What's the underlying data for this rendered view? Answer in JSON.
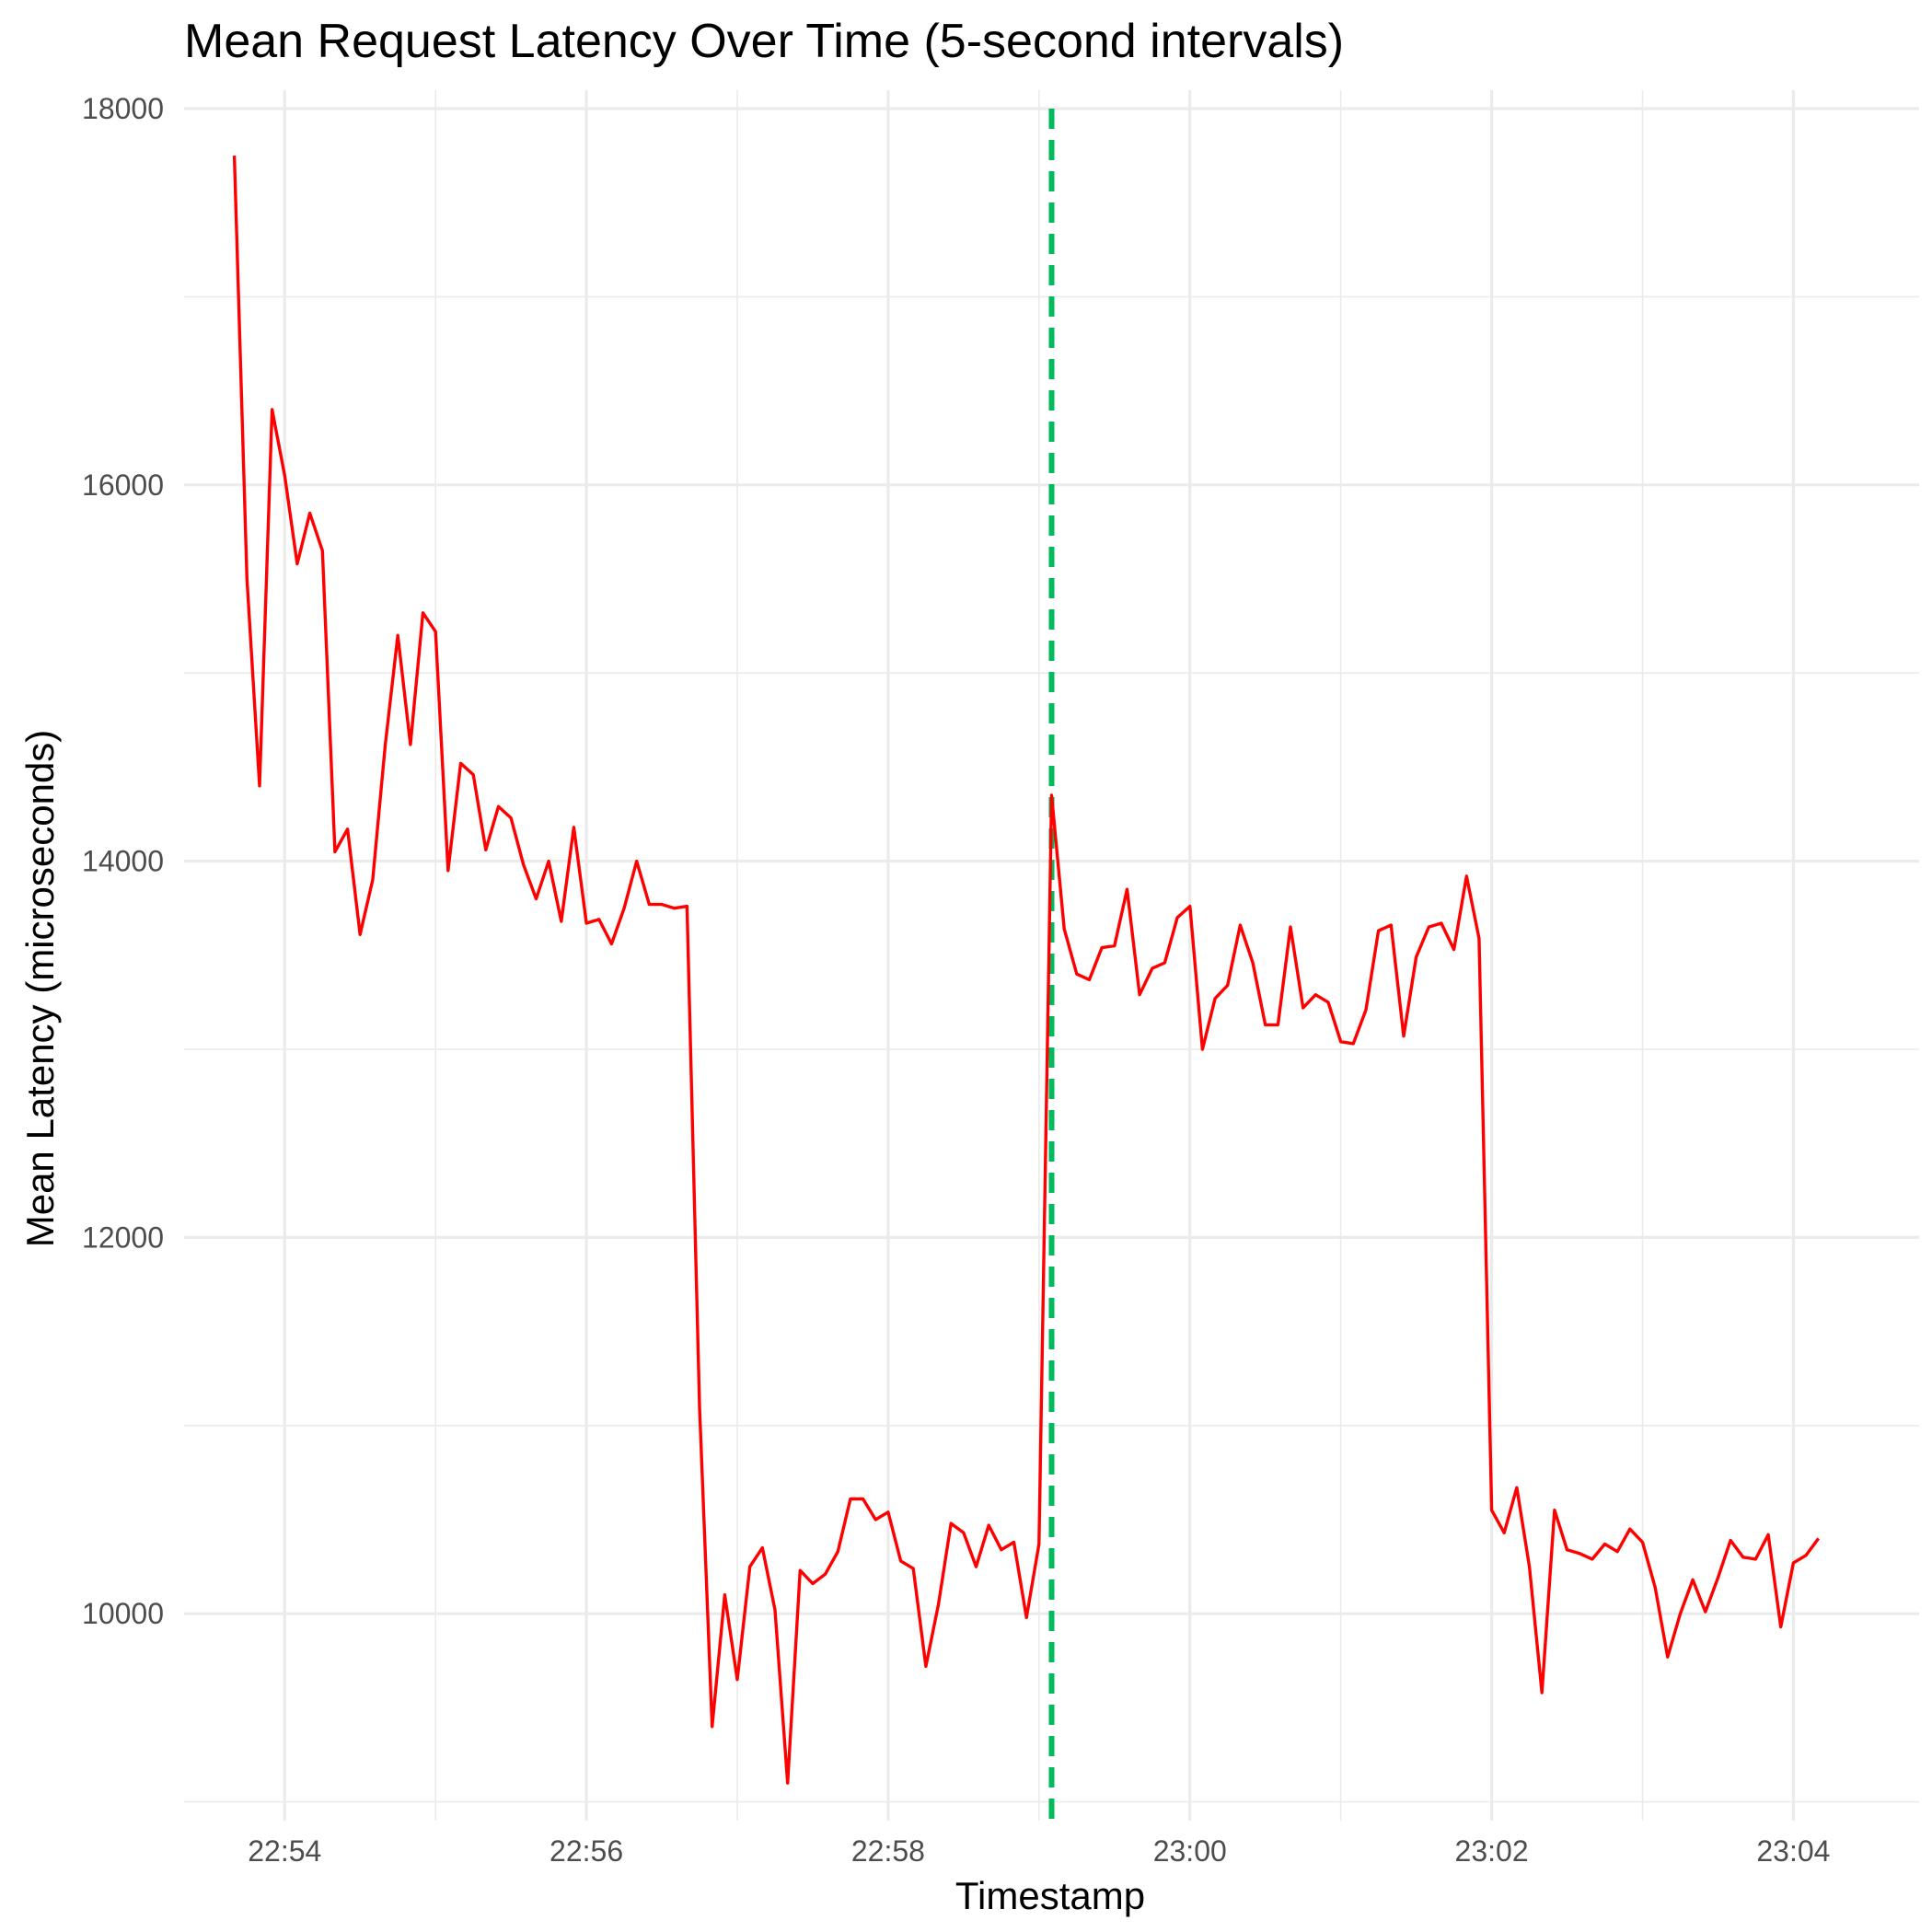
{
  "chart_data": {
    "type": "line",
    "title": "Mean Request Latency Over Time (5-second intervals)",
    "xlabel": "Timestamp",
    "ylabel": "Mean Latency (microseconds)",
    "x_unit": "HH:MM:SS",
    "xlim": [
      "22:53:20",
      "23:04:50"
    ],
    "ylim": [
      8900,
      18000
    ],
    "x_ticks": [
      "22:54",
      "22:56",
      "22:58",
      "23:00",
      "23:02",
      "23:04"
    ],
    "y_ticks": [
      10000,
      12000,
      14000,
      16000,
      18000
    ],
    "grid": true,
    "legend": "none",
    "line_color": "#ff0000",
    "marker_color": "#00ba5c",
    "vline": {
      "x": "22:59:05",
      "style": "dashed"
    },
    "series": [
      {
        "x": [
          "22:53:40",
          "22:53:45",
          "22:53:50",
          "22:53:55",
          "22:54:00",
          "22:54:05",
          "22:54:10",
          "22:54:15",
          "22:54:20",
          "22:54:25",
          "22:54:30",
          "22:54:35",
          "22:54:40",
          "22:54:45",
          "22:54:50",
          "22:54:55",
          "22:55:00",
          "22:55:05",
          "22:55:10",
          "22:55:15",
          "22:55:20",
          "22:55:25",
          "22:55:30",
          "22:55:35",
          "22:55:40",
          "22:55:45",
          "22:55:50",
          "22:55:55",
          "22:56:00",
          "22:56:05",
          "22:56:10",
          "22:56:15",
          "22:56:20",
          "22:56:25",
          "22:56:30",
          "22:56:35",
          "22:56:40",
          "22:56:45",
          "22:56:50",
          "22:56:55",
          "22:57:00",
          "22:57:05",
          "22:57:10",
          "22:57:15",
          "22:57:20",
          "22:57:25",
          "22:57:30",
          "22:57:35",
          "22:57:40",
          "22:57:45",
          "22:57:50",
          "22:57:55",
          "22:58:00",
          "22:58:05",
          "22:58:10",
          "22:58:15",
          "22:58:20",
          "22:58:25",
          "22:58:30",
          "22:58:35",
          "22:58:40",
          "22:58:45",
          "22:58:50",
          "22:58:55",
          "22:59:00",
          "22:59:05",
          "22:59:10",
          "22:59:15",
          "22:59:20",
          "22:59:25",
          "22:59:30",
          "22:59:35",
          "22:59:40",
          "22:59:45",
          "22:59:50",
          "22:59:55",
          "23:00:00",
          "23:00:05",
          "23:00:10",
          "23:00:15",
          "23:00:20",
          "23:00:25",
          "23:00:30",
          "23:00:35",
          "23:00:40",
          "23:00:45",
          "23:00:50",
          "23:00:55",
          "23:01:00",
          "23:01:05",
          "23:01:10",
          "23:01:15",
          "23:01:20",
          "23:01:25",
          "23:01:30",
          "23:01:35",
          "23:01:40",
          "23:01:45",
          "23:01:50",
          "23:01:55",
          "23:02:00",
          "23:02:05",
          "23:02:10",
          "23:02:15",
          "23:02:20",
          "23:02:25",
          "23:02:30",
          "23:02:35",
          "23:02:40",
          "23:02:45",
          "23:02:50",
          "23:02:55",
          "23:03:00",
          "23:03:05",
          "23:03:10",
          "23:03:15",
          "23:03:20",
          "23:03:25",
          "23:03:30",
          "23:03:35",
          "23:03:40",
          "23:03:45",
          "23:03:50",
          "23:03:55",
          "23:04:00",
          "23:04:05",
          "23:04:10"
        ],
        "values": [
          17750,
          15500,
          14400,
          16400,
          16050,
          15580,
          15850,
          15650,
          14050,
          14170,
          13610,
          13900,
          14620,
          15200,
          14620,
          15320,
          15220,
          13950,
          14520,
          14460,
          14060,
          14290,
          14230,
          13980,
          13800,
          14000,
          13680,
          14180,
          13670,
          13690,
          13560,
          13750,
          14000,
          13770,
          13770,
          13750,
          13760,
          11100,
          9400,
          10100,
          9650,
          10250,
          10350,
          10020,
          9100,
          10230,
          10160,
          10210,
          10330,
          10610,
          10610,
          10500,
          10540,
          10280,
          10240,
          9720,
          10050,
          10480,
          10430,
          10250,
          10470,
          10340,
          10380,
          9980,
          10370,
          14350,
          13640,
          13400,
          13370,
          13540,
          13550,
          13850,
          13290,
          13430,
          13460,
          13700,
          13760,
          13000,
          13270,
          13340,
          13660,
          13460,
          13130,
          13130,
          13650,
          13220,
          13290,
          13250,
          13040,
          13030,
          13210,
          13630,
          13660,
          13070,
          13490,
          13650,
          13670,
          13530,
          13920,
          13590,
          10550,
          10430,
          10670,
          10250,
          9580,
          10550,
          10340,
          10320,
          10290,
          10370,
          10330,
          10450,
          10380,
          10140,
          9770,
          10000,
          10180,
          10010,
          10190,
          10390,
          10300,
          10290,
          10420,
          9930,
          10270,
          10310,
          10400
        ]
      }
    ]
  }
}
